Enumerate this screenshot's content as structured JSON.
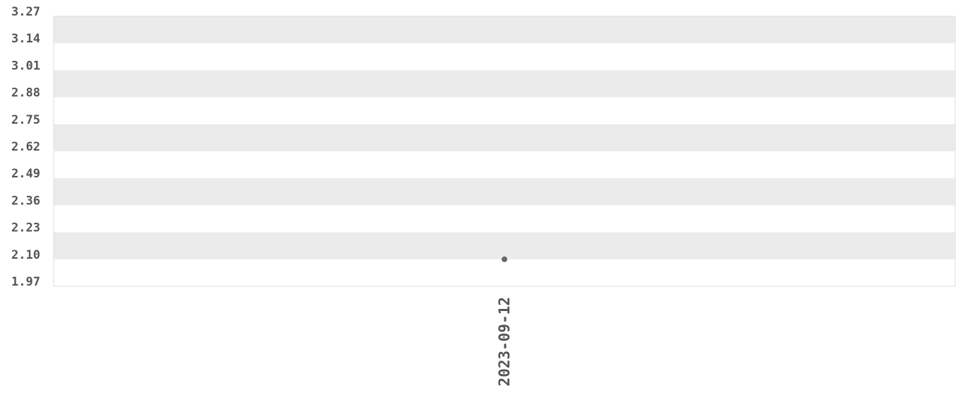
{
  "chart_data": {
    "type": "scatter",
    "title": "",
    "xlabel": "",
    "ylabel": "",
    "x_categories": [
      "2023-09-12"
    ],
    "points": [
      {
        "x": "2023-09-12",
        "y": 2.1
      }
    ],
    "ylim": [
      1.97,
      3.27
    ],
    "yticks": [
      "3.27",
      "3.14",
      "3.01",
      "2.88",
      "2.75",
      "2.62",
      "2.49",
      "2.36",
      "2.23",
      "2.10",
      "1.97"
    ],
    "grid": "alternating horizontal bands",
    "colors": {
      "band": "#ebebeb",
      "point": "#666666",
      "border": "#dddddd",
      "text": "#555555"
    }
  }
}
